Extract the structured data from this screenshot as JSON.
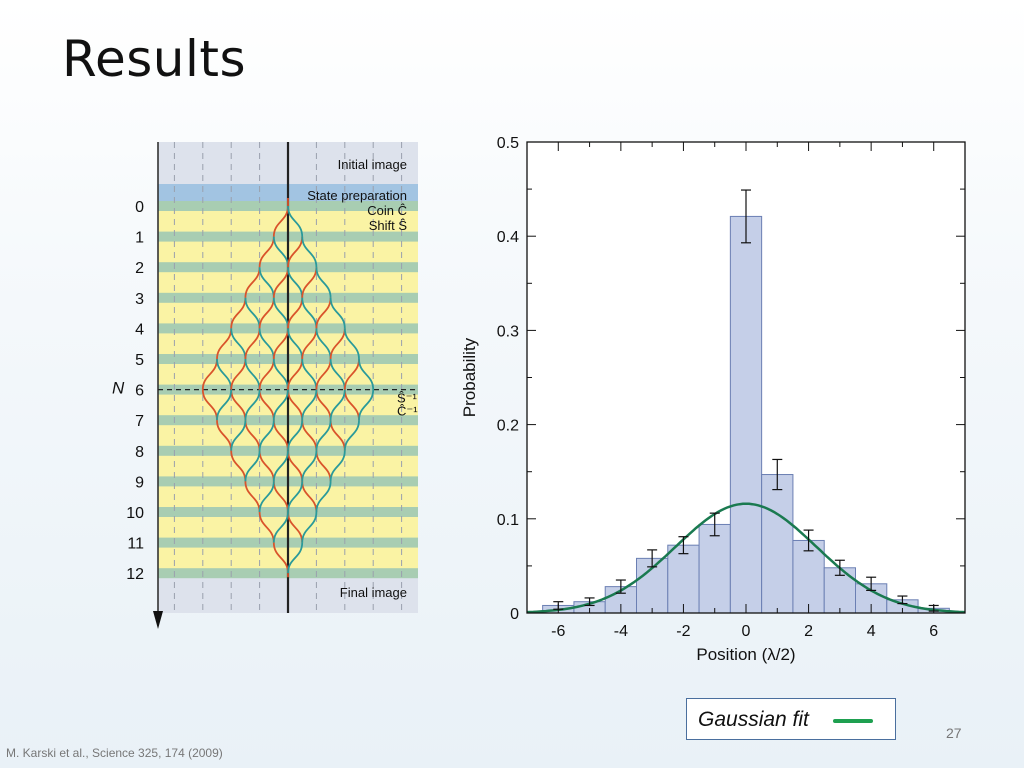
{
  "slide": {
    "title": "Results",
    "page_number": "27",
    "citation": "M. Karski et al., Science 325,  174 (2009)"
  },
  "diagram": {
    "steps": [
      "0",
      "1",
      "2",
      "3",
      "4",
      "5",
      "6",
      "7",
      "8",
      "9",
      "10",
      "11",
      "12"
    ],
    "axis_label": "N",
    "labels": {
      "initial": "Initial image",
      "state_prep": "State preparation",
      "coin": "Coin Ĉ",
      "shift": "Shift Ŝ",
      "shift_inv": "Ŝ⁻¹",
      "coin_inv": "Ĉ⁻¹",
      "final": "Final image"
    },
    "colors": {
      "spin_up": "#d9542b",
      "spin_down": "#2a9a9a",
      "band_yellow": "#faf3a4",
      "band_green": "#a8cdb2",
      "band_blue": "#a2c4e2",
      "background": "#dde2ec"
    }
  },
  "chart_data": {
    "type": "bar",
    "x": [
      -6,
      -5,
      -4,
      -3,
      -2,
      -1,
      0,
      1,
      2,
      3,
      4,
      5,
      6
    ],
    "values": [
      0.008,
      0.012,
      0.028,
      0.058,
      0.072,
      0.094,
      0.421,
      0.147,
      0.077,
      0.048,
      0.031,
      0.014,
      0.005
    ],
    "errors": [
      0.004,
      0.004,
      0.007,
      0.009,
      0.009,
      0.012,
      0.028,
      0.016,
      0.011,
      0.008,
      0.007,
      0.004,
      0.003
    ],
    "fit": {
      "type": "gaussian",
      "amplitude": 0.116,
      "mean": 0.0,
      "sigma": 2.25
    },
    "xlabel": "Position (λ/2)",
    "ylabel": "Probability",
    "xlim": [
      -7,
      7
    ],
    "ylim": [
      0,
      0.5
    ],
    "xticks": [
      -6,
      -4,
      -2,
      0,
      2,
      4,
      6
    ],
    "yticks": [
      0,
      0.1,
      0.2,
      0.3,
      0.4,
      0.5
    ],
    "ytick_labels": [
      "0",
      "0.1",
      "0.2",
      "0.3",
      "0.4",
      "0.5"
    ],
    "bar_color": "#c5cfe8",
    "bar_edge": "#6b7fb3",
    "fit_color": "#1a7a50",
    "legend": {
      "label": "Gaussian fit",
      "color": "#1ea050"
    }
  }
}
